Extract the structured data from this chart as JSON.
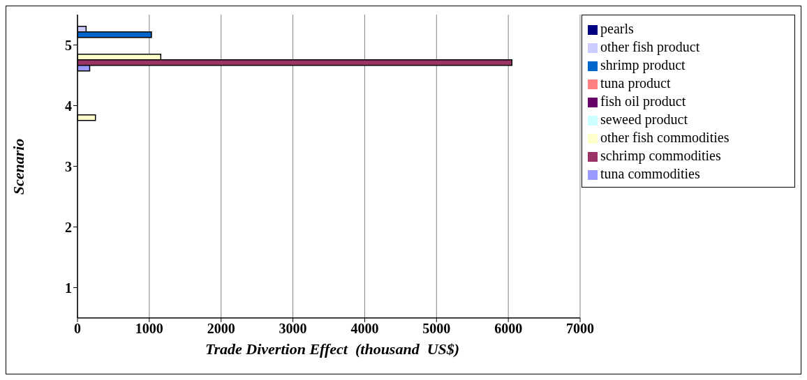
{
  "chart_data": {
    "type": "bar",
    "orientation": "horizontal",
    "xlabel": "Trade Divertion Effect  (thousand  US$)",
    "ylabel": "Scenario",
    "categories": [
      "5",
      "4",
      "3",
      "2",
      "1"
    ],
    "series": [
      {
        "name": "pearls",
        "color": "#000080",
        "values": [
          0,
          0,
          0,
          0,
          0
        ]
      },
      {
        "name": "other fish product",
        "color": "#ccccff",
        "values": [
          120,
          0,
          0,
          0,
          0
        ]
      },
      {
        "name": "shrimp product",
        "color": "#0066cc",
        "values": [
          1030,
          0,
          0,
          0,
          0
        ]
      },
      {
        "name": "tuna product",
        "color": "#ff8080",
        "values": [
          0,
          0,
          0,
          0,
          0
        ]
      },
      {
        "name": "fish oil product",
        "color": "#660066",
        "values": [
          0,
          0,
          0,
          0,
          0
        ]
      },
      {
        "name": "seweed product",
        "color": "#ccffff",
        "values": [
          0,
          0,
          0,
          0,
          0
        ]
      },
      {
        "name": "other fish commodities",
        "color": "#ffffcc",
        "values": [
          1160,
          250,
          0,
          0,
          0
        ]
      },
      {
        "name": "schrimp commodities",
        "color": "#993366",
        "values": [
          6050,
          0,
          0,
          0,
          0
        ]
      },
      {
        "name": "tuna commodities",
        "color": "#9999ff",
        "values": [
          170,
          0,
          0,
          0,
          0
        ]
      }
    ],
    "xlim": [
      0,
      7000
    ],
    "xticks": [
      0,
      1000,
      2000,
      3000,
      4000,
      5000,
      6000,
      7000
    ],
    "grid": "x",
    "legend": "right"
  }
}
